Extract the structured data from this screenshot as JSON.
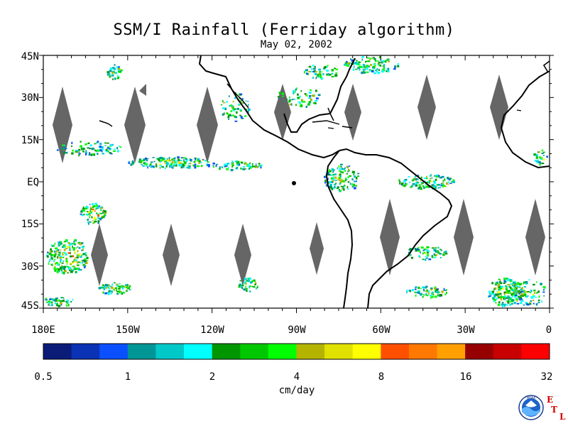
{
  "title": "SSM/I Rainfall (Ferriday algorithm)",
  "date": "May 02, 2002",
  "map": {
    "lat_labels": [
      "45N",
      "30N",
      "15N",
      "EQ",
      "15S",
      "30S",
      "45S"
    ],
    "lon_labels": [
      "180E",
      "150W",
      "120W",
      "90W",
      "60W",
      "30W",
      "0"
    ],
    "no_data_color": "#666666",
    "coastline_color": "#000000"
  },
  "colorbar": {
    "colors": [
      "#0a1c78",
      "#0a32b4",
      "#0a50ff",
      "#009696",
      "#00c8c8",
      "#00ffff",
      "#009600",
      "#00c800",
      "#00ff00",
      "#b4b400",
      "#e1e100",
      "#ffff00",
      "#ff5000",
      "#ff7800",
      "#ffa000",
      "#960000",
      "#c80000",
      "#ff0000"
    ],
    "tick_labels": [
      "0.5",
      "1",
      "2",
      "4",
      "8",
      "16",
      "32"
    ],
    "unit_label": "cm/day"
  },
  "logo": {
    "name": "NOAA",
    "letters": [
      "E",
      "T",
      "L"
    ]
  }
}
